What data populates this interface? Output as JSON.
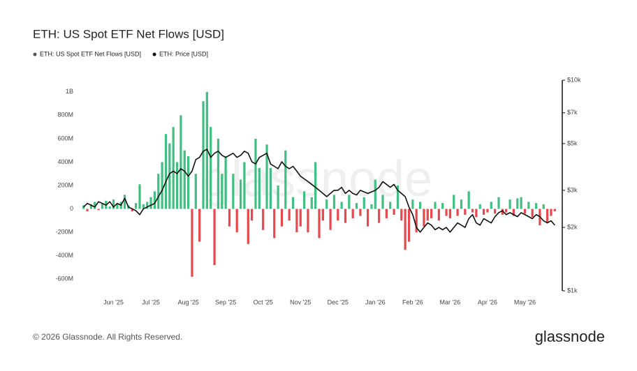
{
  "chart_data": {
    "type": "bar_line",
    "title": "ETH: US Spot ETF Net Flows [USD]",
    "watermark": "glassnode",
    "footer": "© 2026 Glassnode. All Rights Reserved.",
    "brand": "glassnode",
    "categories": [
      null,
      null,
      null,
      null,
      null,
      null,
      null,
      null,
      "Jun '25",
      null,
      null,
      null,
      null,
      null,
      null,
      null,
      null,
      null,
      "Jul '25",
      null,
      null,
      null,
      null,
      null,
      null,
      null,
      null,
      null,
      "Aug '25",
      null,
      null,
      null,
      null,
      null,
      null,
      null,
      null,
      null,
      "Sep '25",
      null,
      null,
      null,
      null,
      null,
      null,
      null,
      null,
      null,
      "Oct '25",
      null,
      null,
      null,
      null,
      null,
      null,
      null,
      null,
      null,
      "Nov '25",
      null,
      null,
      null,
      null,
      null,
      null,
      null,
      null,
      null,
      "Dec '25",
      null,
      null,
      null,
      null,
      null,
      null,
      null,
      null,
      null,
      "Jan '26",
      null,
      null,
      null,
      null,
      null,
      null,
      null,
      null,
      null,
      "Feb '26",
      null,
      null,
      null,
      null,
      null,
      null,
      null,
      null,
      null,
      "Mar '26",
      null,
      null,
      null,
      null,
      null,
      null,
      null,
      null,
      null,
      "Apr '26",
      null,
      null,
      null,
      null,
      null,
      null,
      null,
      null,
      null,
      "May '26",
      null,
      null,
      null,
      null,
      null,
      null,
      null,
      null
    ],
    "series": [
      {
        "name": "ETH: US Spot ETF Net Flows [USD]",
        "legend_color": "#555555",
        "positive_color": "#3fbf82",
        "negative_color": "#e5484d",
        "axis": "y",
        "values": [
          30000000.0,
          -20000000.0,
          40000000.0,
          60000000.0,
          -10000000.0,
          50000000.0,
          70000000.0,
          20000000.0,
          80000000.0,
          40000000.0,
          60000000.0,
          120000000.0,
          30000000.0,
          -20000000.0,
          50000000.0,
          210000000.0,
          40000000.0,
          60000000.0,
          100000000.0,
          150000000.0,
          300000000.0,
          400000000.0,
          640000000.0,
          560000000.0,
          700000000.0,
          400000000.0,
          800000000.0,
          500000000.0,
          450000000.0,
          -580000000.0,
          300000000.0,
          -280000000.0,
          920000000.0,
          1000000000.0,
          700000000.0,
          -480000000.0,
          600000000.0,
          300000000.0,
          450000000.0,
          -150000000.0,
          300000000.0,
          -200000000.0,
          250000000.0,
          400000000.0,
          -300000000.0,
          -100000000.0,
          600000000.0,
          350000000.0,
          -180000000.0,
          550000000.0,
          350000000.0,
          -250000000.0,
          200000000.0,
          -150000000.0,
          500000000.0,
          -100000000.0,
          100000000.0,
          -200000000.0,
          -150000000.0,
          150000000.0,
          -200000000.0,
          100000000.0,
          400000000.0,
          -250000000.0,
          -100000000.0,
          80000000.0,
          -180000000.0,
          120000000.0,
          -100000000.0,
          60000000.0,
          -120000000.0,
          120000000.0,
          -80000000.0,
          50000000.0,
          -60000000.0,
          100000000.0,
          -150000000.0,
          40000000.0,
          250000000.0,
          -120000000.0,
          120000000.0,
          -80000000.0,
          60000000.0,
          -50000000.0,
          200000000.0,
          -100000000.0,
          -350000000.0,
          -280000000.0,
          80000000.0,
          -200000000.0,
          60000000.0,
          -150000000.0,
          -100000000.0,
          -80000000.0,
          60000000.0,
          -100000000.0,
          50000000.0,
          -60000000.0,
          -80000000.0,
          120000000.0,
          -60000000.0,
          80000000.0,
          -50000000.0,
          150000000.0,
          -30000000.0,
          -70000000.0,
          40000000.0,
          -50000000.0,
          -30000000.0,
          60000000.0,
          -40000000.0,
          100000000.0,
          -50000000.0,
          -30000000.0,
          80000000.0,
          -60000000.0,
          90000000.0,
          100000000.0,
          -40000000.0,
          60000000.0,
          -70000000.0,
          50000000.0,
          -140000000.0,
          40000000.0,
          -120000000.0,
          -60000000.0,
          -20000000.0
        ]
      },
      {
        "name": "ETH: Price [USD]",
        "color": "#111111",
        "axis": "y2",
        "values": [
          2500,
          2600,
          2550,
          2500,
          2650,
          2600,
          2550,
          2650,
          2500,
          2600,
          2550,
          2750,
          2500,
          2450,
          2400,
          2300,
          2450,
          2500,
          2550,
          2600,
          2800,
          3000,
          3300,
          3600,
          3700,
          3600,
          3800,
          3700,
          3500,
          3700,
          4200,
          4300,
          4600,
          4700,
          4300,
          4500,
          4600,
          4400,
          4300,
          4400,
          4500,
          4300,
          4400,
          4600,
          4500,
          4100,
          4000,
          4300,
          4400,
          4500,
          4000,
          3900,
          3800,
          4100,
          3900,
          3800,
          3900,
          3700,
          3500,
          3400,
          3300,
          3200,
          3100,
          3000,
          2900,
          2800,
          2900,
          3000,
          3000,
          3100,
          2900,
          3000,
          2900,
          2850,
          3000,
          2950,
          2900,
          2950,
          3000,
          3100,
          3300,
          3200,
          3100,
          3200,
          3000,
          2900,
          2800,
          2500,
          2300,
          2000,
          1900,
          2000,
          2100,
          2050,
          1950,
          2000,
          1950,
          2000,
          1900,
          2000,
          2100,
          2050,
          2000,
          2200,
          2300,
          2100,
          2050,
          2200,
          2150,
          2100,
          2250,
          2350,
          2400,
          2300,
          2350,
          2300,
          2250,
          2350,
          2300,
          2250,
          2200,
          2300,
          2250,
          2150,
          2100,
          2150,
          2050
        ]
      }
    ],
    "ylim": [
      -700000000,
      1100000000
    ],
    "yticks": [
      {
        "value": -600000000,
        "label": "-600M"
      },
      {
        "value": -400000000,
        "label": "-400M"
      },
      {
        "value": -200000000,
        "label": "-200M"
      },
      0,
      {
        "value": 200000000,
        "label": "200M"
      },
      {
        "value": 400000000,
        "label": "400M"
      },
      {
        "value": 600000000,
        "label": "600M"
      },
      {
        "value": 800000000,
        "label": "800M"
      },
      {
        "value": 1000000000,
        "label": "1B"
      }
    ],
    "y2lim": [
      1000,
      10000
    ],
    "y2log": true,
    "y2ticks": [
      {
        "value": 1000,
        "label": "$1k"
      },
      {
        "value": 2000,
        "label": "$2k"
      },
      {
        "value": 3000,
        "label": "$3k"
      },
      {
        "value": 5000,
        "label": "$5k"
      },
      {
        "value": 7000,
        "label": "$7k"
      },
      {
        "value": 10000,
        "label": "$10k"
      }
    ],
    "grid": false
  }
}
